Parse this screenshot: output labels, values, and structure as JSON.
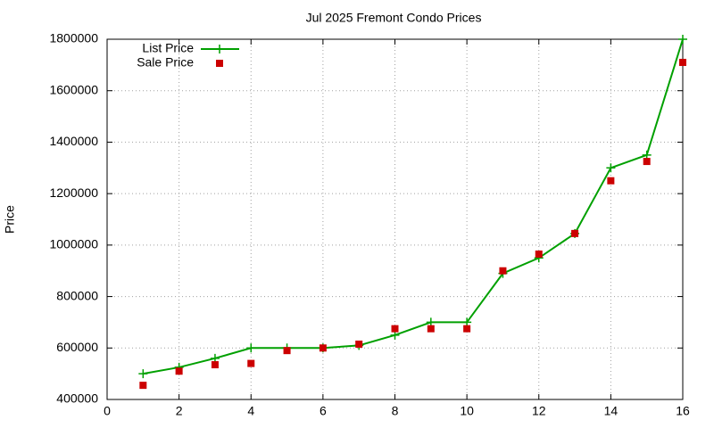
{
  "chart_data": {
    "type": "line",
    "title": "Jul 2025 Fremont Condo Prices",
    "y_label": "Price",
    "x": [
      1,
      2,
      3,
      4,
      5,
      6,
      7,
      8,
      9,
      10,
      11,
      12,
      13,
      14,
      15,
      16
    ],
    "series": [
      {
        "name": "List Price",
        "color": "#00a000",
        "mode": "lines+points",
        "values": [
          500000,
          525000,
          560000,
          600000,
          600000,
          600000,
          610000,
          650000,
          700000,
          700000,
          890000,
          950000,
          1045000,
          1300000,
          1350000,
          1800000
        ]
      },
      {
        "name": "Sale Price",
        "color": "#cc0000",
        "mode": "points",
        "values": [
          455000,
          510000,
          535000,
          540000,
          590000,
          600000,
          615000,
          675000,
          675000,
          675000,
          900000,
          965000,
          1045000,
          1250000,
          1325000,
          1710000
        ]
      }
    ],
    "xlim": [
      0,
      16
    ],
    "xticks": [
      0,
      2,
      4,
      6,
      8,
      10,
      12,
      14,
      16
    ],
    "ylim": [
      400000,
      1800000
    ],
    "yticks": [
      400000,
      600000,
      800000,
      1000000,
      1200000,
      1400000,
      1600000,
      1800000
    ],
    "grid": true,
    "legend": "top-left"
  }
}
